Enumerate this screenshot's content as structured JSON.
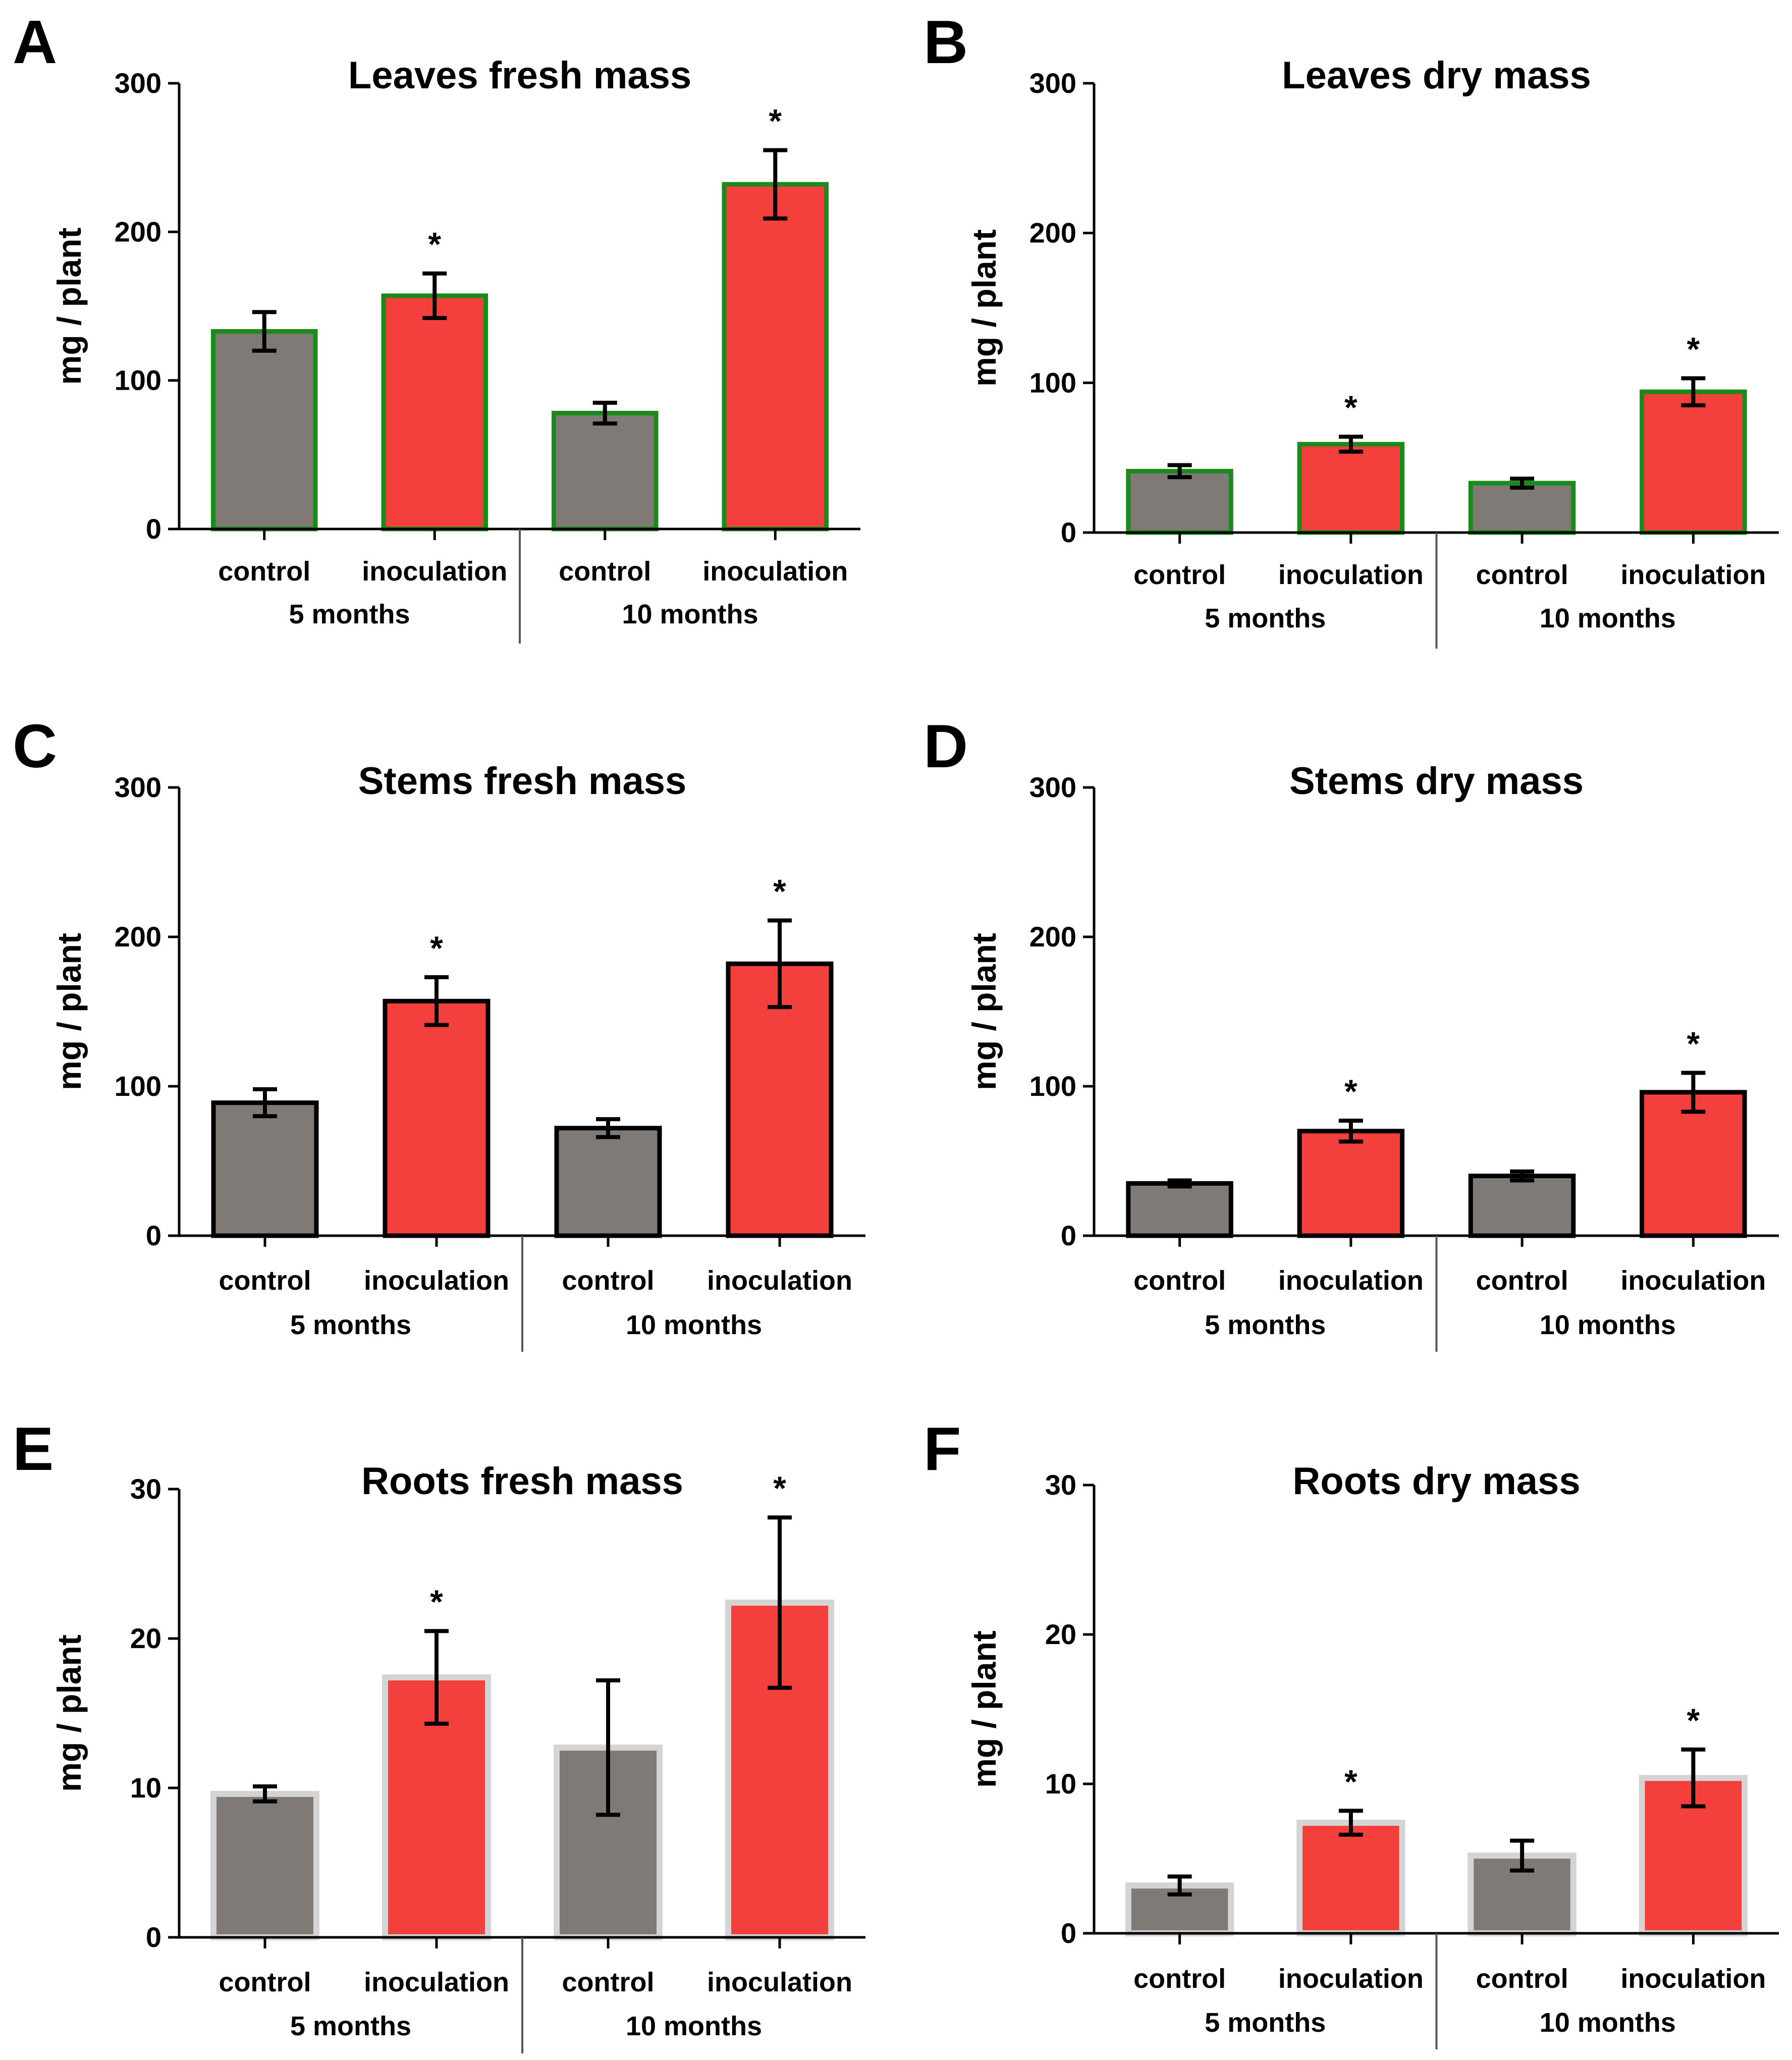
{
  "chart_data": [
    {
      "panel": "A",
      "type": "bar",
      "title": "Leaves fresh mass",
      "ylabel": "mg / plant",
      "xlabel": "",
      "ylim": [
        0,
        300
      ],
      "yticks": [
        0,
        100,
        200,
        300
      ],
      "categories": [
        "control",
        "inoculation",
        "control",
        "inoculation"
      ],
      "groups": [
        {
          "label": "5 months",
          "span": [
            0,
            1
          ]
        },
        {
          "label": "10 months",
          "span": [
            2,
            3
          ]
        }
      ],
      "values": [
        133,
        157,
        78,
        232
      ],
      "errors": [
        13,
        15,
        7,
        23
      ],
      "significance": [
        "",
        "*",
        "",
        "*"
      ],
      "colors": [
        "#7f7a75",
        "#f4403c",
        "#7f7a75",
        "#f4403c"
      ],
      "edge_color": "#1a8a1a",
      "grid": false
    },
    {
      "panel": "B",
      "type": "bar",
      "title": "Leaves dry mass",
      "ylabel": "mg / plant",
      "xlabel": "",
      "ylim": [
        0,
        300
      ],
      "yticks": [
        0,
        100,
        200,
        300
      ],
      "categories": [
        "control",
        "inoculation",
        "control",
        "inoculation"
      ],
      "groups": [
        {
          "label": "5 months",
          "span": [
            0,
            1
          ]
        },
        {
          "label": "10 months",
          "span": [
            2,
            3
          ]
        }
      ],
      "values": [
        41,
        59,
        33,
        94
      ],
      "errors": [
        4,
        5,
        3,
        9
      ],
      "significance": [
        "",
        "*",
        "",
        "*"
      ],
      "colors": [
        "#7f7a75",
        "#f4403c",
        "#7f7a75",
        "#f4403c"
      ],
      "edge_color": "#1a8a1a",
      "grid": false
    },
    {
      "panel": "C",
      "type": "bar",
      "title": "Stems fresh mass",
      "ylabel": "mg / plant",
      "xlabel": "",
      "ylim": [
        0,
        300
      ],
      "yticks": [
        0,
        100,
        200,
        300
      ],
      "categories": [
        "control",
        "inoculation",
        "control",
        "inoculation"
      ],
      "groups": [
        {
          "label": "5 months",
          "span": [
            0,
            1
          ]
        },
        {
          "label": "10 months",
          "span": [
            2,
            3
          ]
        }
      ],
      "values": [
        89,
        157,
        72,
        182
      ],
      "errors": [
        9,
        16,
        6,
        29
      ],
      "significance": [
        "",
        "*",
        "",
        "*"
      ],
      "colors": [
        "#7f7a75",
        "#f4403c",
        "#7f7a75",
        "#f4403c"
      ],
      "edge_color": "#000000",
      "grid": false
    },
    {
      "panel": "D",
      "type": "bar",
      "title": "Stems dry mass",
      "ylabel": "mg / plant",
      "xlabel": "",
      "ylim": [
        0,
        300
      ],
      "yticks": [
        0,
        100,
        200,
        300
      ],
      "categories": [
        "control",
        "inoculation",
        "control",
        "inoculation"
      ],
      "groups": [
        {
          "label": "5 months",
          "span": [
            0,
            1
          ]
        },
        {
          "label": "10 months",
          "span": [
            2,
            3
          ]
        }
      ],
      "values": [
        35,
        70,
        40,
        96
      ],
      "errors": [
        2,
        7,
        3,
        13
      ],
      "significance": [
        "",
        "*",
        "",
        "*"
      ],
      "colors": [
        "#7f7a75",
        "#f4403c",
        "#7f7a75",
        "#f4403c"
      ],
      "edge_color": "#000000",
      "grid": false
    },
    {
      "panel": "E",
      "type": "bar",
      "title": "Roots fresh mass",
      "ylabel": "mg / plant",
      "xlabel": "",
      "ylim": [
        0,
        30
      ],
      "yticks": [
        0,
        10,
        20,
        30
      ],
      "categories": [
        "control",
        "inoculation",
        "control",
        "inoculation"
      ],
      "groups": [
        {
          "label": "5 months",
          "span": [
            0,
            1
          ]
        },
        {
          "label": "10 months",
          "span": [
            2,
            3
          ]
        }
      ],
      "values": [
        9.6,
        17.4,
        12.7,
        22.4
      ],
      "errors": [
        0.5,
        3.1,
        4.5,
        5.7
      ],
      "significance": [
        "",
        "*",
        "",
        "*"
      ],
      "colors": [
        "#7f7a75",
        "#f4403c",
        "#7f7a75",
        "#f4403c"
      ],
      "edge_color": "#d4d4d4",
      "grid": false
    },
    {
      "panel": "F",
      "type": "bar",
      "title": "Roots dry mass",
      "ylabel": "mg / plant",
      "xlabel": "",
      "ylim": [
        0,
        30
      ],
      "yticks": [
        0,
        10,
        20,
        30
      ],
      "categories": [
        "control",
        "inoculation",
        "control",
        "inoculation"
      ],
      "groups": [
        {
          "label": "5 months",
          "span": [
            0,
            1
          ]
        },
        {
          "label": "10 months",
          "span": [
            2,
            3
          ]
        }
      ],
      "values": [
        3.2,
        7.4,
        5.2,
        10.4
      ],
      "errors": [
        0.6,
        0.8,
        1.0,
        1.9
      ],
      "significance": [
        "",
        "*",
        "",
        "*"
      ],
      "colors": [
        "#7f7a75",
        "#f4403c",
        "#7f7a75",
        "#f4403c"
      ],
      "edge_color": "#d4d4d4",
      "grid": false
    }
  ]
}
